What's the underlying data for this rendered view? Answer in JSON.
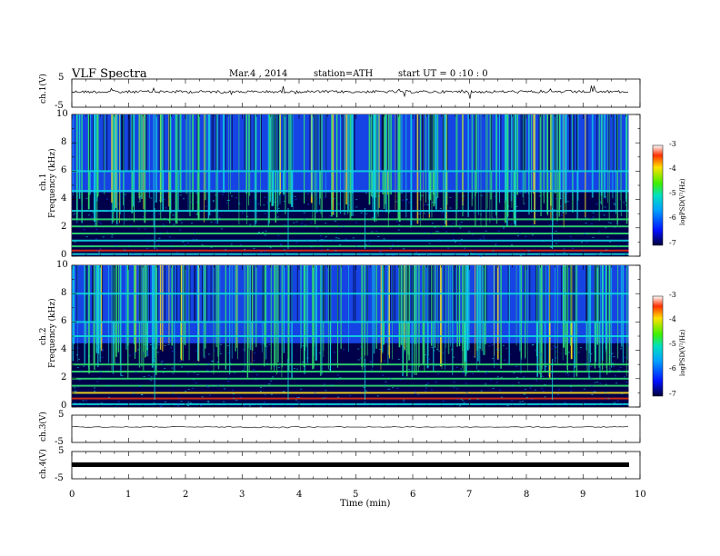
{
  "header": {
    "title": "VLF Spectra",
    "date": "Mar.4 , 2014",
    "station": "station=ATH",
    "start": "start UT = 0 :10 : 0"
  },
  "colorbar_ticks": [
    "-3",
    "-4",
    "-5",
    "-6",
    "-7"
  ],
  "colorbar_label": "logPSD(V²/Hz)",
  "colors": {
    "spec_low": "#00004a",
    "spec_mid": "#1a50ff",
    "spec_cyan": "#10d8e0",
    "spec_green": "#30e070",
    "spec_high": "#e03010",
    "trace": "#000000"
  },
  "chart_data": [
    {
      "type": "line",
      "name": "ch1-waveform",
      "ylabel": "ch.1(V)",
      "ylim": [
        -5,
        5
      ],
      "yticks": [
        "5",
        "-5"
      ],
      "x_range_min": [
        0,
        10
      ],
      "data_end_min": 9.8
    },
    {
      "type": "heatmap",
      "name": "ch1-spectrogram",
      "ylabel_top": "ch.1",
      "ylabel": "Frequency (kHz)",
      "ylim": [
        0,
        10
      ],
      "yticks": [
        "10",
        "8",
        "6",
        "4",
        "2",
        "0"
      ],
      "clim": [
        -7,
        -3
      ],
      "step_change_times_min": [
        1.45,
        3.8,
        5.15,
        8.45
      ]
    },
    {
      "type": "heatmap",
      "name": "ch2-spectrogram",
      "ylabel_top": "ch.2",
      "ylabel": "Frequency (kHz)",
      "ylim": [
        0,
        10
      ],
      "yticks": [
        "10",
        "8",
        "6",
        "4",
        "2",
        "0"
      ],
      "clim": [
        -7,
        -3
      ],
      "step_change_times_min": [
        1.45,
        3.8,
        5.15,
        8.45
      ]
    },
    {
      "type": "line",
      "name": "ch3-waveform",
      "ylabel": "ch.3(V)",
      "ylim": [
        -5,
        5
      ],
      "yticks": [
        "5",
        "-5"
      ]
    },
    {
      "type": "line",
      "name": "ch4-waveform",
      "ylabel": "ch.4(V)",
      "ylim": [
        -5,
        5
      ],
      "yticks": [
        "5",
        "-5"
      ]
    }
  ],
  "x_axis": {
    "xlabel": "Time (min)",
    "xlim": [
      0,
      10
    ],
    "ticks": [
      "0",
      "1",
      "2",
      "3",
      "4",
      "5",
      "6",
      "7",
      "8",
      "9",
      "10"
    ]
  }
}
